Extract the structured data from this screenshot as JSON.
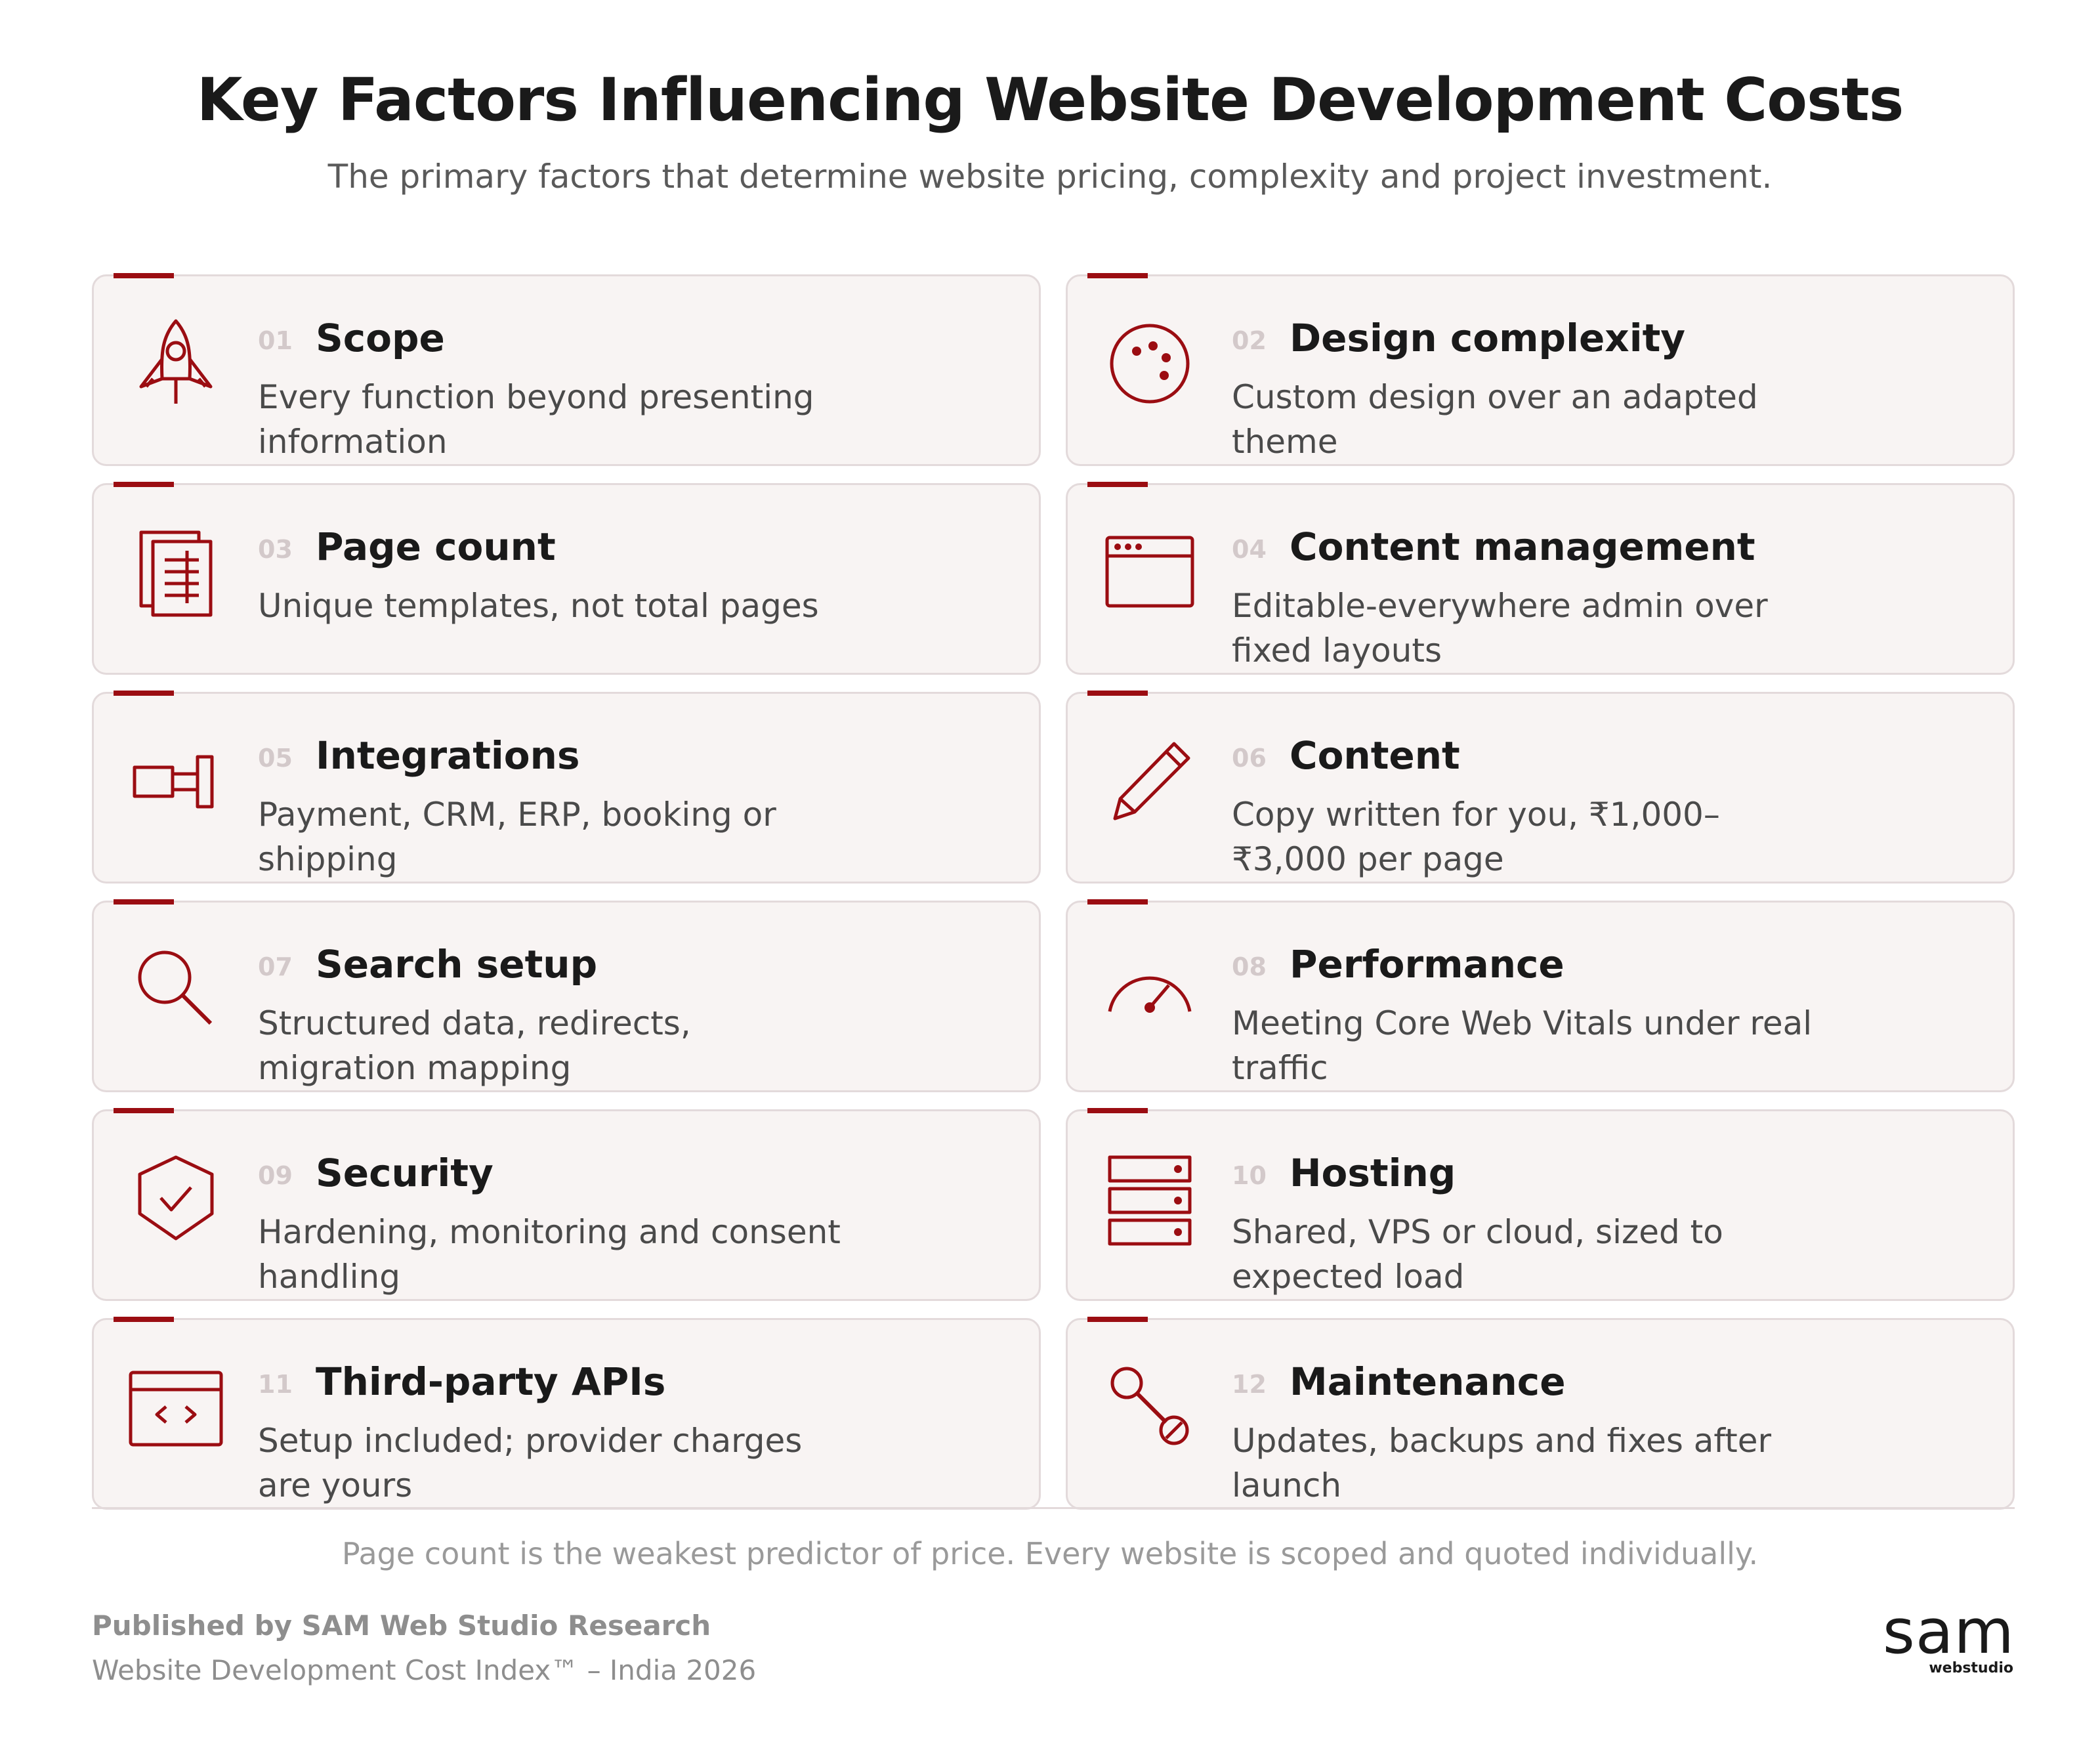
{
  "header": {
    "title": "Key Factors Influencing Website Development Costs",
    "subtitle": "The primary factors that determine website pricing, complexity and project investment."
  },
  "colors": {
    "accent": "#9b0d12",
    "card_bg": "#f8f4f3",
    "card_border": "#e3dadb"
  },
  "factors": [
    {
      "num": "01",
      "title": "Scope",
      "desc": "Every function beyond presenting information",
      "icon": "rocket-icon"
    },
    {
      "num": "02",
      "title": "Design complexity",
      "desc": "Custom design over an adapted theme",
      "icon": "palette-icon"
    },
    {
      "num": "03",
      "title": "Page count",
      "desc": "Unique templates, not total pages",
      "icon": "documents-icon"
    },
    {
      "num": "04",
      "title": "Content management",
      "desc": "Editable-everywhere admin over fixed layouts",
      "icon": "browser-window-icon"
    },
    {
      "num": "05",
      "title": "Integrations",
      "desc": "Payment, CRM, ERP, booking or shipping",
      "icon": "plug-icon"
    },
    {
      "num": "06",
      "title": "Content",
      "desc": "Copy written for you, ₹1,000–₹3,000 per page",
      "icon": "pencil-icon"
    },
    {
      "num": "07",
      "title": "Search setup",
      "desc": "Structured data, redirects, migration mapping",
      "icon": "magnifier-icon"
    },
    {
      "num": "08",
      "title": "Performance",
      "desc": "Meeting Core Web Vitals under real traffic",
      "icon": "speedometer-icon"
    },
    {
      "num": "09",
      "title": "Security",
      "desc": "Hardening, monitoring and consent handling",
      "icon": "shield-check-icon"
    },
    {
      "num": "10",
      "title": "Hosting",
      "desc": "Shared, VPS or cloud, sized to expected load",
      "icon": "server-icon"
    },
    {
      "num": "11",
      "title": "Third-party APIs",
      "desc": "Setup included; provider charges are yours",
      "icon": "code-window-icon"
    },
    {
      "num": "12",
      "title": "Maintenance",
      "desc": "Updates, backups and fixes after launch",
      "icon": "wrench-icon"
    }
  ],
  "footer": {
    "note": "Page count is the weakest predictor of price. Every website is scoped and quoted individually.",
    "publisher": "Published by SAM Web Studio Research",
    "index": "Website Development Cost Index™ – India 2026",
    "logo_word": "sam",
    "logo_sub": "webstudio"
  }
}
